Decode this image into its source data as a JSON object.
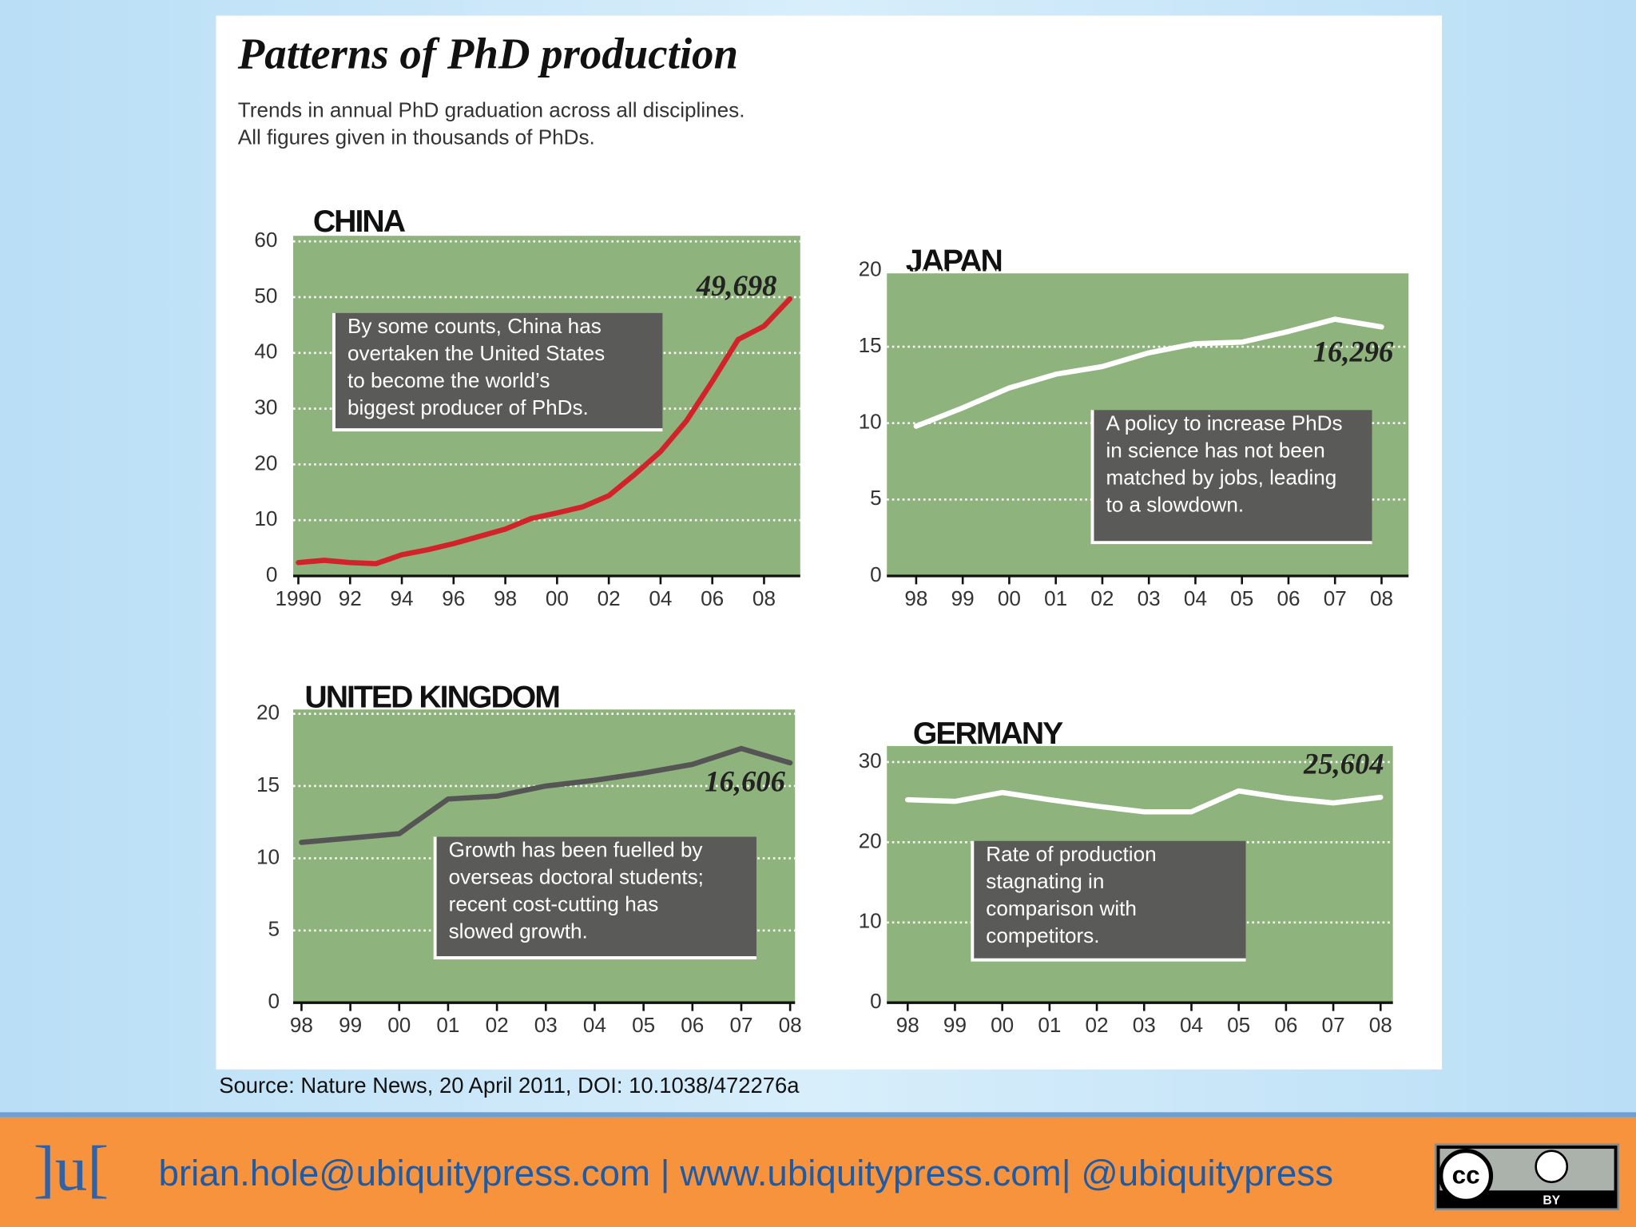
{
  "header": {
    "title": "Patterns of PhD production",
    "subtitle": [
      "Trends in annual PhD graduation across all disciplines.",
      "All figures given in thousands of PhDs."
    ]
  },
  "chart_data": [
    {
      "type": "line",
      "title": "CHINA",
      "color": "#d2232a",
      "grid": true,
      "x": [
        1990,
        1991,
        1992,
        1993,
        1994,
        1995,
        1996,
        1997,
        1998,
        1999,
        2000,
        2001,
        2002,
        2003,
        2004,
        2005,
        2006,
        2007,
        2008,
        2009
      ],
      "values": [
        2.4,
        2.8,
        2.4,
        2.2,
        3.8,
        4.7,
        5.8,
        7.1,
        8.4,
        10.3,
        11.3,
        12.4,
        14.4,
        18.2,
        22.3,
        27.8,
        34.9,
        42.4,
        44.8,
        49.698
      ],
      "value_labels": [
        null,
        null,
        null,
        null,
        null,
        null,
        null,
        null,
        null,
        null,
        null,
        null,
        null,
        null,
        null,
        null,
        null,
        null,
        null,
        "49,698"
      ],
      "xlim": [
        1989.8,
        2009.4
      ],
      "xticks": [
        {
          "value": 1990,
          "label": "1990"
        },
        {
          "value": 1992,
          "label": "92"
        },
        {
          "value": 1994,
          "label": "94"
        },
        {
          "value": 1996,
          "label": "96"
        },
        {
          "value": 1998,
          "label": "98"
        },
        {
          "value": 2000,
          "label": "00"
        },
        {
          "value": 2002,
          "label": "02"
        },
        {
          "value": 2004,
          "label": "04"
        },
        {
          "value": 2006,
          "label": "06"
        },
        {
          "value": 2008,
          "label": "08"
        }
      ],
      "ylim": [
        0,
        61
      ],
      "yticks": [
        0,
        10,
        20,
        30,
        40,
        50,
        60
      ],
      "annotation": [
        "By some counts, China has",
        "overtaken the United States",
        "to become the world’s",
        "biggest producer of PhDs."
      ]
    },
    {
      "type": "line",
      "title": "JAPAN",
      "color": "#ffffff",
      "grid": true,
      "x": [
        1998,
        1999,
        2000,
        2001,
        2002,
        2003,
        2004,
        2005,
        2006,
        2007,
        2008
      ],
      "values": [
        9.8,
        11,
        12.3,
        13.2,
        13.7,
        14.6,
        15.2,
        15.3,
        16,
        16.8,
        16.296
      ],
      "value_labels": [
        null,
        null,
        null,
        null,
        null,
        null,
        null,
        null,
        null,
        null,
        "16,296"
      ],
      "xlim": [
        1997.37,
        2008.58
      ],
      "xticks": [
        {
          "value": 1998,
          "label": "98"
        },
        {
          "value": 1999,
          "label": "99"
        },
        {
          "value": 2000,
          "label": "00"
        },
        {
          "value": 2001,
          "label": "01"
        },
        {
          "value": 2002,
          "label": "02"
        },
        {
          "value": 2003,
          "label": "03"
        },
        {
          "value": 2004,
          "label": "04"
        },
        {
          "value": 2005,
          "label": "05"
        },
        {
          "value": 2006,
          "label": "06"
        },
        {
          "value": 2007,
          "label": "07"
        },
        {
          "value": 2008,
          "label": "08"
        }
      ],
      "ylim": [
        0,
        19.8
      ],
      "yticks": [
        0,
        5,
        10,
        15,
        20
      ],
      "annotation": [
        "A policy to increase PhDs",
        "in science has not been",
        "matched by jobs, leading",
        "to a slowdown."
      ]
    },
    {
      "type": "line",
      "title": "UNITED KINGDOM",
      "color": "#555555",
      "grid": true,
      "x": [
        1998,
        1999,
        2000,
        2001,
        2002,
        2003,
        2004,
        2005,
        2006,
        2007,
        2008
      ],
      "values": [
        11.1,
        11.4,
        11.7,
        14.1,
        14.3,
        15,
        15.4,
        15.9,
        16.5,
        17.6,
        16.606
      ],
      "value_labels": [
        null,
        null,
        null,
        null,
        null,
        null,
        null,
        null,
        null,
        null,
        "16,606"
      ],
      "xlim": [
        1997.83,
        2008.1
      ],
      "xticks": [
        {
          "value": 1998,
          "label": "98"
        },
        {
          "value": 1999,
          "label": "99"
        },
        {
          "value": 2000,
          "label": "00"
        },
        {
          "value": 2001,
          "label": "01"
        },
        {
          "value": 2002,
          "label": "02"
        },
        {
          "value": 2003,
          "label": "03"
        },
        {
          "value": 2004,
          "label": "04"
        },
        {
          "value": 2005,
          "label": "05"
        },
        {
          "value": 2006,
          "label": "06"
        },
        {
          "value": 2007,
          "label": "07"
        },
        {
          "value": 2008,
          "label": "08"
        }
      ],
      "ylim": [
        0,
        20.3
      ],
      "yticks": [
        0,
        5,
        10,
        15,
        20
      ],
      "annotation": [
        "Growth has been fuelled by",
        "overseas doctoral students;",
        "recent cost-cutting has",
        "slowed growth."
      ]
    },
    {
      "type": "line",
      "title": "GERMANY",
      "color": "#ffffff",
      "grid": true,
      "x": [
        1998,
        1999,
        2000,
        2001,
        2002,
        2003,
        2004,
        2005,
        2006,
        2007,
        2008
      ],
      "values": [
        25.3,
        25.1,
        26.2,
        25.3,
        24.5,
        23.8,
        23.8,
        26.4,
        25.5,
        24.9,
        25.604
      ],
      "value_labels": [
        null,
        null,
        null,
        null,
        null,
        null,
        null,
        null,
        null,
        null,
        "25,604"
      ],
      "xlim": [
        1997.56,
        2008.26
      ],
      "xticks": [
        {
          "value": 1998,
          "label": "98"
        },
        {
          "value": 1999,
          "label": "99"
        },
        {
          "value": 2000,
          "label": "00"
        },
        {
          "value": 2001,
          "label": "01"
        },
        {
          "value": 2002,
          "label": "02"
        },
        {
          "value": 2003,
          "label": "03"
        },
        {
          "value": 2004,
          "label": "04"
        },
        {
          "value": 2005,
          "label": "05"
        },
        {
          "value": 2006,
          "label": "06"
        },
        {
          "value": 2007,
          "label": "07"
        },
        {
          "value": 2008,
          "label": "08"
        }
      ],
      "ylim": [
        0,
        32
      ],
      "yticks": [
        0,
        10,
        20,
        30
      ],
      "annotation": [
        "Rate of production",
        "stagnating in",
        "comparison with",
        "competitors."
      ]
    }
  ],
  "source": "Source: Nature News, 20 April 2011, DOI: 10.1038/472276a",
  "footer": {
    "logo": "]u[",
    "contact": "brian.hole@ubiquitypress.com | www.ubiquitypress.com| @ubiquitypress",
    "license": {
      "cc": "cc",
      "by": "BY"
    }
  }
}
